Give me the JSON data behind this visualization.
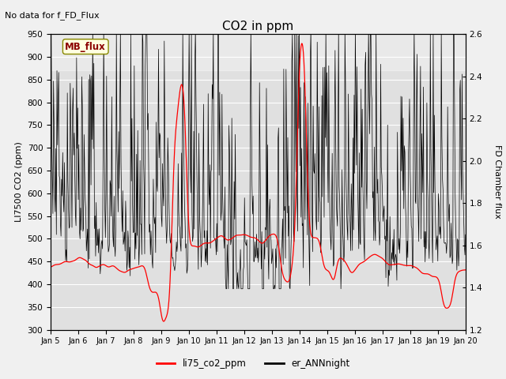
{
  "title": "CO2 in ppm",
  "ylabel_left": "LI7500 CO2 (ppm)",
  "ylabel_right": "FD Chamber flux",
  "annotation_text": "No data for f_FD_Flux",
  "mb_flux_label": "MB_flux",
  "legend_labels": [
    "li75_co2_ppm",
    "er_ANNnight"
  ],
  "ylim_left": [
    300,
    950
  ],
  "ylim_right": [
    1.2,
    2.6
  ],
  "yticks_left": [
    300,
    350,
    400,
    450,
    500,
    550,
    600,
    650,
    700,
    750,
    800,
    850,
    900,
    950
  ],
  "yticks_right": [
    1.2,
    1.4,
    1.6,
    1.8,
    2.0,
    2.2,
    2.4,
    2.6
  ],
  "xtick_labels": [
    "Jan 5",
    "Jan 6",
    "Jan 7",
    "Jan 8",
    "Jan 9",
    "Jan 10",
    "Jan 11",
    "Jan 12",
    "Jan 13",
    "Jan 14",
    "Jan 15",
    "Jan 16",
    "Jan 17",
    "Jan 18",
    "Jan 19",
    "Jan 20"
  ],
  "n_days": 15,
  "background_color": "#f0f0f0",
  "plot_bg_color": "#e0e0e0",
  "grid_color": "white",
  "line_color_red": "red",
  "line_color_black": "black",
  "figsize": [
    6.4,
    4.8
  ],
  "dpi": 100
}
